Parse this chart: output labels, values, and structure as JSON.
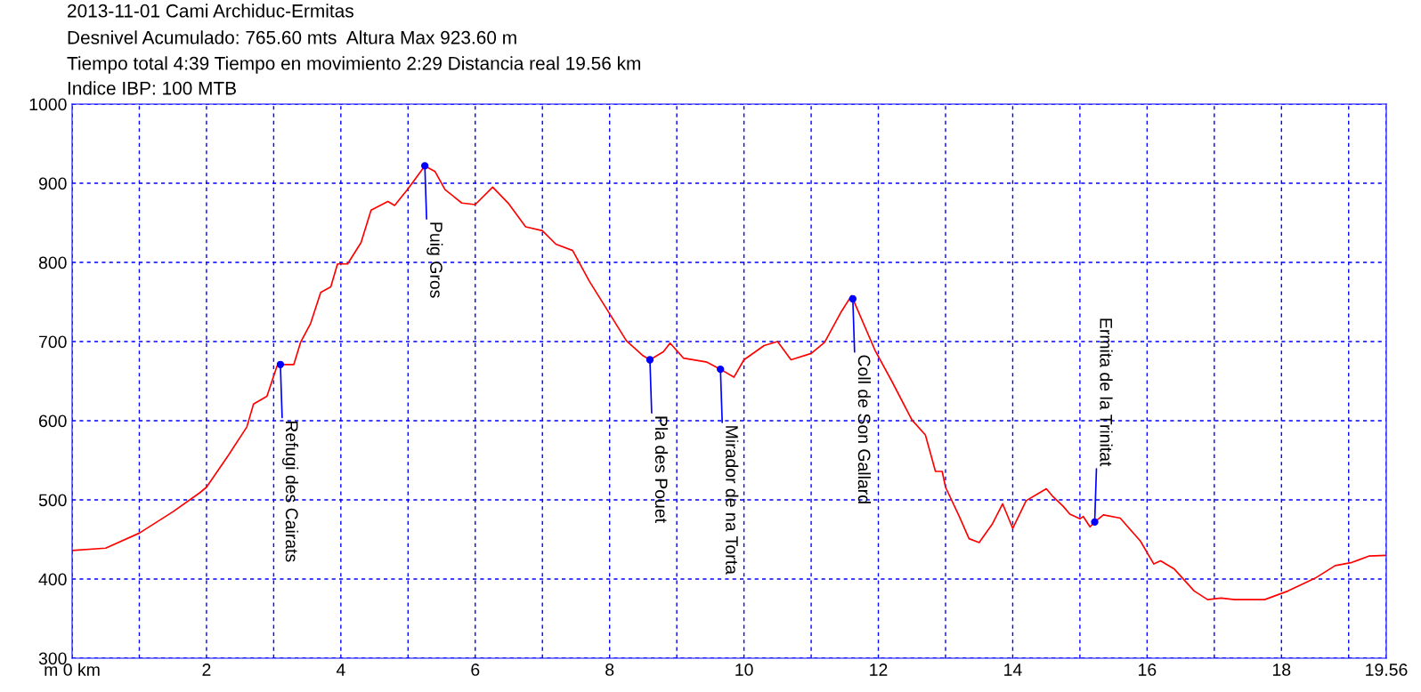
{
  "chart_data": {
    "type": "line",
    "title": "2013-11-01 Cami Archiduc-Ermitas",
    "subtitle": "Desnivel Acumulado: 765.60 mts  Altura Max 923.60 m",
    "annotations": [
      "Tiempo total 4:39 Tiempo en movimiento 2:29 Distancia real 19.56 km",
      "Indice IBP: 100 MTB",
      {
        "text": "Refugi des Cairats",
        "x": 3.1,
        "y": 671
      },
      {
        "text": "Puig Gros",
        "x": 5.25,
        "y": 922
      },
      {
        "text": "Pla des Pouet",
        "x": 8.6,
        "y": 677
      },
      {
        "text": "Mirador de na Torta",
        "x": 9.65,
        "y": 665
      },
      {
        "text": "Coll de Son Gallard",
        "x": 11.62,
        "y": 754
      },
      {
        "text": "Ermita de la Trinitat",
        "x": 15.22,
        "y": 472
      }
    ],
    "series": [
      {
        "color": "#ff0000",
        "x": [
          0,
          0.5,
          1.0,
          1.5,
          1.9,
          2.0,
          2.3,
          2.6,
          2.7,
          2.9,
          3.05,
          3.1,
          3.3,
          3.4,
          3.55,
          3.7,
          3.85,
          3.95,
          4.1,
          4.3,
          4.45,
          4.7,
          4.8,
          5.0,
          5.25,
          5.4,
          5.55,
          5.8,
          6.0,
          6.26,
          6.5,
          6.75,
          7.0,
          7.2,
          7.45,
          7.7,
          7.95,
          8.25,
          8.5,
          8.6,
          8.8,
          8.9,
          9.1,
          9.45,
          9.65,
          9.85,
          10.0,
          10.3,
          10.5,
          10.7,
          11.0,
          11.2,
          11.45,
          11.6,
          11.62,
          11.95,
          12.2,
          12.5,
          12.7,
          12.85,
          12.95,
          13.0,
          13.2,
          13.35,
          13.5,
          13.7,
          13.85,
          14.0,
          14.2,
          14.4,
          14.5,
          14.6,
          14.75,
          14.85,
          15.0,
          15.05,
          15.15,
          15.22,
          15.35,
          15.6,
          15.9,
          16.1,
          16.2,
          16.4,
          16.7,
          16.9,
          17.1,
          17.3,
          17.75,
          18.1,
          18.5,
          18.8,
          19.05,
          19.3,
          19.56
        ],
        "values": [
          436,
          439,
          458,
          485,
          509,
          516,
          553,
          592,
          621,
          631,
          669,
          671,
          671,
          699,
          723,
          762,
          769,
          798,
          798,
          825,
          866,
          877,
          872,
          893,
          922,
          915,
          892,
          875,
          873,
          895,
          874,
          845,
          840,
          823,
          815,
          776,
          742,
          701,
          682,
          677,
          687,
          698,
          679,
          674,
          665,
          655,
          677,
          695,
          700,
          677,
          685,
          699,
          738,
          758,
          754,
          689,
          650,
          601,
          582,
          536,
          536,
          516,
          480,
          451,
          446,
          470,
          495,
          464,
          499,
          509,
          514,
          504,
          492,
          482,
          476,
          479,
          466,
          472,
          481,
          477,
          448,
          419,
          423,
          413,
          385,
          374,
          376,
          374,
          374,
          385,
          401,
          417,
          421,
          429,
          430
        ]
      }
    ],
    "xlim": [
      0,
      19.56
    ],
    "ylim": [
      300,
      1000
    ],
    "xticks": [
      {
        "value": 0,
        "label": "m 0 km"
      },
      {
        "value": 1,
        "label": null
      },
      2,
      {
        "value": 3,
        "label": null
      },
      4,
      {
        "value": 5,
        "label": null
      },
      6,
      {
        "value": 7,
        "label": null
      },
      8,
      {
        "value": 9,
        "label": null
      },
      10,
      {
        "value": 11,
        "label": null
      },
      12,
      {
        "value": 13,
        "label": null
      },
      14,
      {
        "value": 15,
        "label": null
      },
      16,
      {
        "value": 17,
        "label": null
      },
      18,
      {
        "value": 19,
        "label": null
      },
      19.56
    ],
    "yticks": [
      300,
      400,
      500,
      600,
      700,
      800,
      900,
      1000
    ],
    "grid": true,
    "marker": "none",
    "line_style": "solid"
  }
}
